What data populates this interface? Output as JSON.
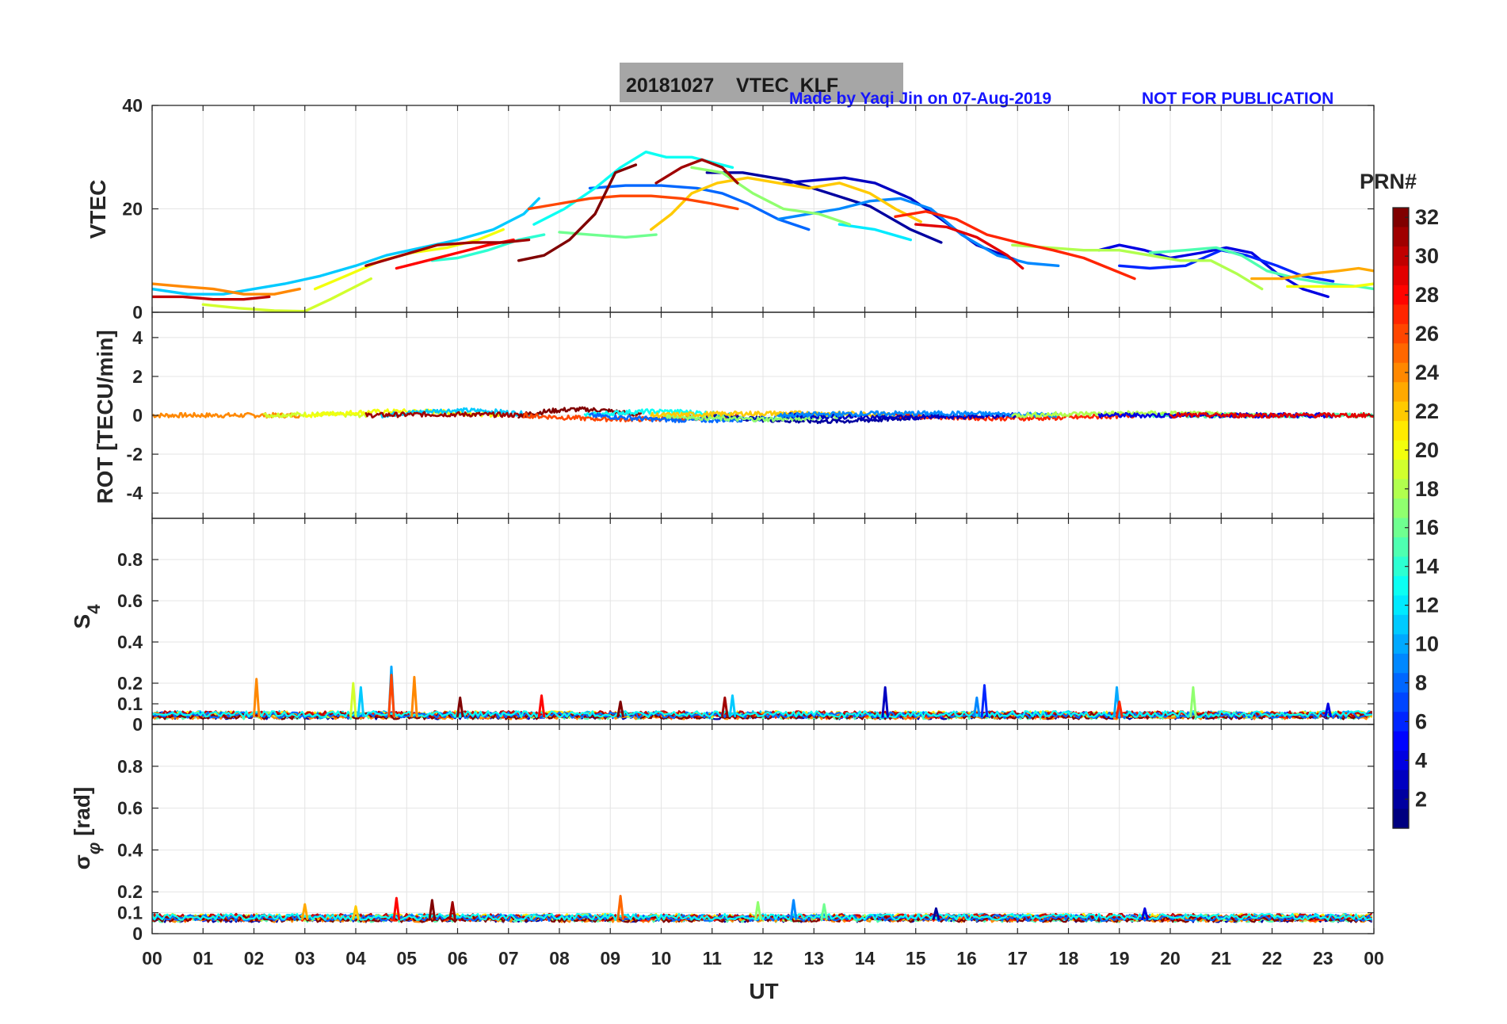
{
  "figure": {
    "title": "20181027    VTEC  KLF",
    "credit": "Made by Yaqi Jin on 07-Aug-2019",
    "notice": "NOT FOR PUBLICATION",
    "xlabel": "UT",
    "colorbar_label": "PRN#"
  },
  "chart_data": [
    {
      "type": "line",
      "panel": "vtec",
      "ylabel": "VTEC",
      "ylim": [
        0,
        40
      ],
      "yticks": [
        0,
        20,
        40
      ],
      "xlim": [
        0,
        24
      ],
      "xtick_labels": [
        "00",
        "01",
        "02",
        "03",
        "04",
        "05",
        "06",
        "07",
        "08",
        "09",
        "10",
        "11",
        "12",
        "13",
        "14",
        "15",
        "16",
        "17",
        "18",
        "19",
        "20",
        "21",
        "22",
        "23",
        "00"
      ],
      "grid": true,
      "series": [
        {
          "prn": 2,
          "x": [
            10.9,
            11.6,
            12.5,
            13.3,
            14.1,
            14.9,
            15.5
          ],
          "y": [
            27,
            27,
            25.5,
            23,
            20.5,
            16,
            13.5
          ]
        },
        {
          "prn": 3,
          "x": [
            12.4,
            13.0,
            13.6,
            14.2,
            14.9,
            15.5,
            16.2,
            17.0
          ],
          "y": [
            25,
            25.5,
            26,
            25,
            22,
            18,
            13,
            10
          ]
        },
        {
          "prn": 4,
          "x": [
            18.6,
            19.0,
            19.5,
            20.0,
            20.6,
            21.1,
            21.6,
            22.1,
            22.6,
            23.1
          ],
          "y": [
            12,
            13,
            12,
            10.5,
            11.5,
            12.5,
            11.5,
            7.5,
            4.5,
            3
          ]
        },
        {
          "prn": 6,
          "x": [
            19.0,
            19.6,
            20.3,
            21.0,
            21.5,
            22.1,
            22.6,
            23.2
          ],
          "y": [
            9,
            8.5,
            9,
            12,
            11,
            9,
            7,
            6
          ]
        },
        {
          "prn": 8,
          "x": [
            8.6,
            9.3,
            10.0,
            10.7,
            11.2,
            11.7,
            12.3,
            12.9
          ],
          "y": [
            24,
            24.5,
            24.5,
            24,
            23,
            21,
            18,
            16
          ]
        },
        {
          "prn": 9,
          "x": [
            12.3,
            12.9,
            13.5,
            14.1,
            14.7,
            15.3,
            15.9,
            16.6,
            17.2,
            17.8
          ],
          "y": [
            18,
            19,
            20,
            21.5,
            22,
            20,
            15,
            11,
            9.5,
            9
          ]
        },
        {
          "prn": 11,
          "x": [
            0.0,
            0.7,
            1.4,
            2.0,
            2.6,
            3.3,
            4.0,
            4.6,
            5.3,
            6.0,
            6.7,
            7.3,
            7.6
          ],
          "y": [
            4.5,
            3.5,
            3.5,
            4.5,
            5.5,
            7,
            9,
            11,
            12.5,
            14,
            16,
            19,
            22
          ]
        },
        {
          "prn": 12,
          "x": [
            13.5,
            14.2,
            14.9
          ],
          "y": [
            17,
            16,
            14
          ]
        },
        {
          "prn": 13,
          "x": [
            7.5,
            8.1,
            8.7,
            9.2,
            9.7,
            10.1,
            10.6,
            11.0,
            11.4
          ],
          "y": [
            17,
            20,
            24,
            28,
            31,
            30,
            30,
            29,
            28
          ]
        },
        {
          "prn": 14,
          "x": [
            5.5,
            6.0,
            6.6,
            7.2,
            7.7
          ],
          "y": [
            10,
            10.5,
            12,
            14,
            15
          ]
        },
        {
          "prn": 15,
          "x": [
            19.6,
            20.3,
            20.9,
            21.4,
            21.9,
            22.5,
            23.1,
            23.7,
            24.0
          ],
          "y": [
            11.5,
            12,
            12.5,
            11,
            8,
            6.5,
            5.5,
            5,
            4.5
          ]
        },
        {
          "prn": 16,
          "x": [
            8.0,
            8.6,
            9.3,
            9.9
          ],
          "y": [
            15.5,
            15,
            14.5,
            15
          ]
        },
        {
          "prn": 17,
          "x": [
            10.6,
            11.2,
            11.8,
            12.4,
            13.1,
            13.7
          ],
          "y": [
            28,
            27,
            23,
            20,
            19,
            17
          ]
        },
        {
          "prn": 18,
          "x": [
            16.9,
            17.6,
            18.3,
            19.0,
            19.6,
            20.2,
            20.8,
            21.3,
            21.8
          ],
          "y": [
            13,
            12.5,
            12,
            12,
            11,
            10,
            10,
            7.5,
            4.5
          ]
        },
        {
          "prn": 19,
          "x": [
            1.0,
            1.7,
            2.4,
            3.0,
            3.5,
            3.9,
            4.3
          ],
          "y": [
            1.5,
            0.8,
            0.3,
            0.2,
            2.5,
            4.5,
            6.5
          ]
        },
        {
          "prn": 20,
          "x": [
            3.2,
            3.8,
            4.5,
            5.1,
            5.8,
            6.4,
            6.9
          ],
          "y": [
            4.5,
            7,
            10,
            11.5,
            12.5,
            14,
            16
          ]
        },
        {
          "prn": 22,
          "x": [
            9.8,
            10.2,
            10.6,
            11.1,
            11.7,
            12.3,
            12.9,
            13.5,
            14.1,
            14.6,
            15.1
          ],
          "y": [
            16,
            19,
            23,
            25,
            26,
            25,
            24,
            25,
            23,
            20,
            17.5
          ]
        },
        {
          "prn": 23,
          "x": [
            21.6,
            22.2,
            22.8,
            23.3,
            23.7,
            24.0
          ],
          "y": [
            6.5,
            6.5,
            7.5,
            8,
            8.5,
            8
          ]
        },
        {
          "prn": 24,
          "x": [
            0.0,
            0.6,
            1.2,
            1.8,
            2.4,
            2.9
          ],
          "y": [
            5.5,
            5,
            4.5,
            3.5,
            3.5,
            4.5
          ]
        },
        {
          "prn": 26,
          "x": [
            7.4,
            8.0,
            8.6,
            9.2,
            9.8,
            10.4,
            11.0,
            11.5
          ],
          "y": [
            20,
            21,
            22,
            22.5,
            22.5,
            22,
            21,
            20
          ]
        },
        {
          "prn": 27,
          "x": [
            14.6,
            15.2,
            15.8,
            16.4,
            17.0,
            17.7,
            18.3,
            18.8,
            19.3
          ],
          "y": [
            18.5,
            19.5,
            18,
            15,
            13.5,
            12,
            10.5,
            8.5,
            6.5
          ]
        },
        {
          "prn": 28,
          "x": [
            4.8,
            5.4,
            6.0,
            6.6,
            7.1
          ],
          "y": [
            8.5,
            10,
            11.5,
            13,
            14
          ]
        },
        {
          "prn": 29,
          "x": [
            15.0,
            15.6,
            16.2,
            16.8,
            17.1
          ],
          "y": [
            17,
            16.5,
            14.5,
            11,
            8.5
          ]
        },
        {
          "prn": 30,
          "x": [
            0.0,
            0.6,
            1.2,
            1.8,
            2.3
          ],
          "y": [
            3,
            3,
            2.5,
            2.5,
            3
          ]
        },
        {
          "prn": 31,
          "x": [
            4.2,
            4.9,
            5.6,
            6.3,
            6.9,
            7.4
          ],
          "y": [
            9,
            11,
            13,
            13.5,
            13.5,
            14
          ]
        },
        {
          "prn": 32,
          "x": [
            7.2,
            7.7,
            8.2,
            8.7,
            9.1,
            9.5
          ],
          "y": [
            10,
            11,
            14,
            19,
            27,
            28.5
          ]
        },
        {
          "prn": 31,
          "x": [
            9.9,
            10.4,
            10.8,
            11.2,
            11.5
          ],
          "y": [
            25,
            28,
            29.5,
            28,
            25
          ]
        },
        {
          "prn": 20,
          "x": [
            22.3,
            23.0,
            23.6,
            24.0
          ],
          "y": [
            5,
            5,
            5,
            5.5
          ]
        }
      ]
    },
    {
      "type": "line",
      "panel": "rot",
      "ylabel": "ROT [TECU/min]",
      "ylim": [
        -5.3,
        5.3
      ],
      "yticks": [
        -4,
        -2,
        0,
        2,
        4
      ],
      "xlim": [
        0,
        24
      ],
      "grid": true,
      "noise_amplitude": 0.12,
      "segments": [
        {
          "prn": 24,
          "x": [
            0.0,
            2.9
          ],
          "level": 0.0
        },
        {
          "prn": 19,
          "x": [
            2.2,
            4.2
          ],
          "level": 0.05
        },
        {
          "prn": 20,
          "x": [
            3.0,
            6.9
          ],
          "level": 0.2
        },
        {
          "prn": 11,
          "x": [
            4.5,
            7.6
          ],
          "level": 0.25
        },
        {
          "prn": 31,
          "x": [
            4.2,
            7.4
          ],
          "level": 0.05
        },
        {
          "prn": 32,
          "x": [
            7.2,
            9.6
          ],
          "level": 0.3
        },
        {
          "prn": 26,
          "x": [
            7.3,
            11.5
          ],
          "level": -0.2
        },
        {
          "prn": 13,
          "x": [
            8.5,
            11.4
          ],
          "level": 0.2
        },
        {
          "prn": 8,
          "x": [
            8.6,
            12.9
          ],
          "level": -0.25
        },
        {
          "prn": 2,
          "x": [
            10.9,
            15.5
          ],
          "level": -0.3
        },
        {
          "prn": 17,
          "x": [
            10.0,
            13.7
          ],
          "level": -0.2
        },
        {
          "prn": 22,
          "x": [
            9.8,
            15.1
          ],
          "level": 0.1
        },
        {
          "prn": 27,
          "x": [
            14.6,
            19.3
          ],
          "level": -0.15
        },
        {
          "prn": 3,
          "x": [
            12.4,
            17.0
          ],
          "level": -0.1
        },
        {
          "prn": 9,
          "x": [
            12.3,
            17.8
          ],
          "level": 0.1
        },
        {
          "prn": 15,
          "x": [
            19.6,
            24.0
          ],
          "level": 0.0
        },
        {
          "prn": 18,
          "x": [
            16.9,
            21.8
          ],
          "level": 0.1
        },
        {
          "prn": 4,
          "x": [
            18.6,
            23.2
          ],
          "level": 0.0
        },
        {
          "prn": 29,
          "x": [
            20.0,
            24.0
          ],
          "level": 0.0
        }
      ]
    },
    {
      "type": "line",
      "panel": "s4",
      "ylabel": "S4",
      "ylim": [
        0,
        1.0
      ],
      "yticks": [
        0,
        0.1,
        0.2,
        0.4,
        0.6,
        0.8
      ],
      "xlim": [
        0,
        24
      ],
      "grid": true,
      "baseline": 0.04,
      "spikes": [
        {
          "prn": 24,
          "x": 2.05,
          "y": 0.22
        },
        {
          "prn": 19,
          "x": 3.95,
          "y": 0.2
        },
        {
          "prn": 11,
          "x": 4.1,
          "y": 0.18
        },
        {
          "prn": 10,
          "x": 4.7,
          "y": 0.28
        },
        {
          "prn": 26,
          "x": 4.7,
          "y": 0.24
        },
        {
          "prn": 24,
          "x": 5.15,
          "y": 0.23
        },
        {
          "prn": 32,
          "x": 6.05,
          "y": 0.13
        },
        {
          "prn": 28,
          "x": 7.65,
          "y": 0.14
        },
        {
          "prn": 32,
          "x": 9.2,
          "y": 0.11
        },
        {
          "prn": 31,
          "x": 11.25,
          "y": 0.13
        },
        {
          "prn": 11,
          "x": 11.4,
          "y": 0.14
        },
        {
          "prn": 3,
          "x": 14.4,
          "y": 0.18
        },
        {
          "prn": 9,
          "x": 16.2,
          "y": 0.13
        },
        {
          "prn": 6,
          "x": 16.35,
          "y": 0.19
        },
        {
          "prn": 10,
          "x": 18.95,
          "y": 0.18
        },
        {
          "prn": 27,
          "x": 19.0,
          "y": 0.11
        },
        {
          "prn": 17,
          "x": 20.45,
          "y": 0.18
        },
        {
          "prn": 4,
          "x": 23.1,
          "y": 0.1
        }
      ]
    },
    {
      "type": "line",
      "panel": "sigma_phi",
      "ylabel": "σφ [rad]",
      "ylim": [
        0,
        1.0
      ],
      "yticks": [
        0,
        0.1,
        0.2,
        0.4,
        0.6,
        0.8
      ],
      "xlim": [
        0,
        24
      ],
      "grid": true,
      "baseline": 0.07,
      "spikes": [
        {
          "prn": 23,
          "x": 3.0,
          "y": 0.14
        },
        {
          "prn": 22,
          "x": 4.0,
          "y": 0.13
        },
        {
          "prn": 28,
          "x": 4.8,
          "y": 0.17
        },
        {
          "prn": 32,
          "x": 5.5,
          "y": 0.16
        },
        {
          "prn": 31,
          "x": 5.9,
          "y": 0.15
        },
        {
          "prn": 25,
          "x": 9.2,
          "y": 0.18
        },
        {
          "prn": 17,
          "x": 11.9,
          "y": 0.15
        },
        {
          "prn": 9,
          "x": 12.6,
          "y": 0.16
        },
        {
          "prn": 16,
          "x": 13.2,
          "y": 0.14
        },
        {
          "prn": 2,
          "x": 15.4,
          "y": 0.12
        },
        {
          "prn": 4,
          "x": 19.5,
          "y": 0.12
        }
      ]
    },
    {
      "type": "heatmap",
      "panel": "colorbar",
      "label": "PRN#",
      "range": [
        1,
        32
      ],
      "ticks": [
        2,
        4,
        6,
        8,
        10,
        12,
        14,
        16,
        18,
        20,
        22,
        24,
        26,
        28,
        30,
        32
      ],
      "colormap": "jet"
    }
  ]
}
